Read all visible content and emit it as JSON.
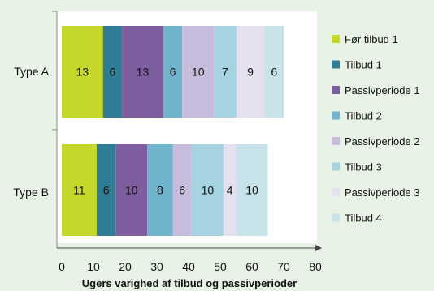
{
  "chart_data": {
    "type": "bar",
    "orientation": "horizontal",
    "stacked": true,
    "categories": [
      "Type A",
      "Type B"
    ],
    "series": [
      {
        "name": "Før tilbud 1",
        "values": [
          13,
          11
        ],
        "color": "#c6d72b"
      },
      {
        "name": "Tilbud 1",
        "values": [
          6,
          6
        ],
        "color": "#2f7d95"
      },
      {
        "name": "Passivperiode 1",
        "values": [
          13,
          10
        ],
        "color": "#7d5f9f"
      },
      {
        "name": "Tilbud 2",
        "values": [
          6,
          8
        ],
        "color": "#6fb3cc"
      },
      {
        "name": "Passivperiode 2",
        "values": [
          10,
          6
        ],
        "color": "#c8bcdc"
      },
      {
        "name": "Tilbud 3",
        "values": [
          7,
          10
        ],
        "color": "#a6d3e0"
      },
      {
        "name": "Passivperiode 3",
        "values": [
          9,
          4
        ],
        "color": "#e4e0ee"
      },
      {
        "name": "Tilbud 4",
        "values": [
          6,
          10
        ],
        "color": "#c8e2ea"
      }
    ],
    "xlabel": "Ugers varighed af tilbud og passivperioder",
    "ylabel": "",
    "xlim": [
      0,
      80
    ],
    "xticks": [
      "0",
      "10",
      "20",
      "30",
      "40",
      "50",
      "60",
      "70",
      "80"
    ],
    "grid": false,
    "legend_position": "right",
    "plot_background": "#ffffff",
    "page_background": "#e9f2e6"
  }
}
